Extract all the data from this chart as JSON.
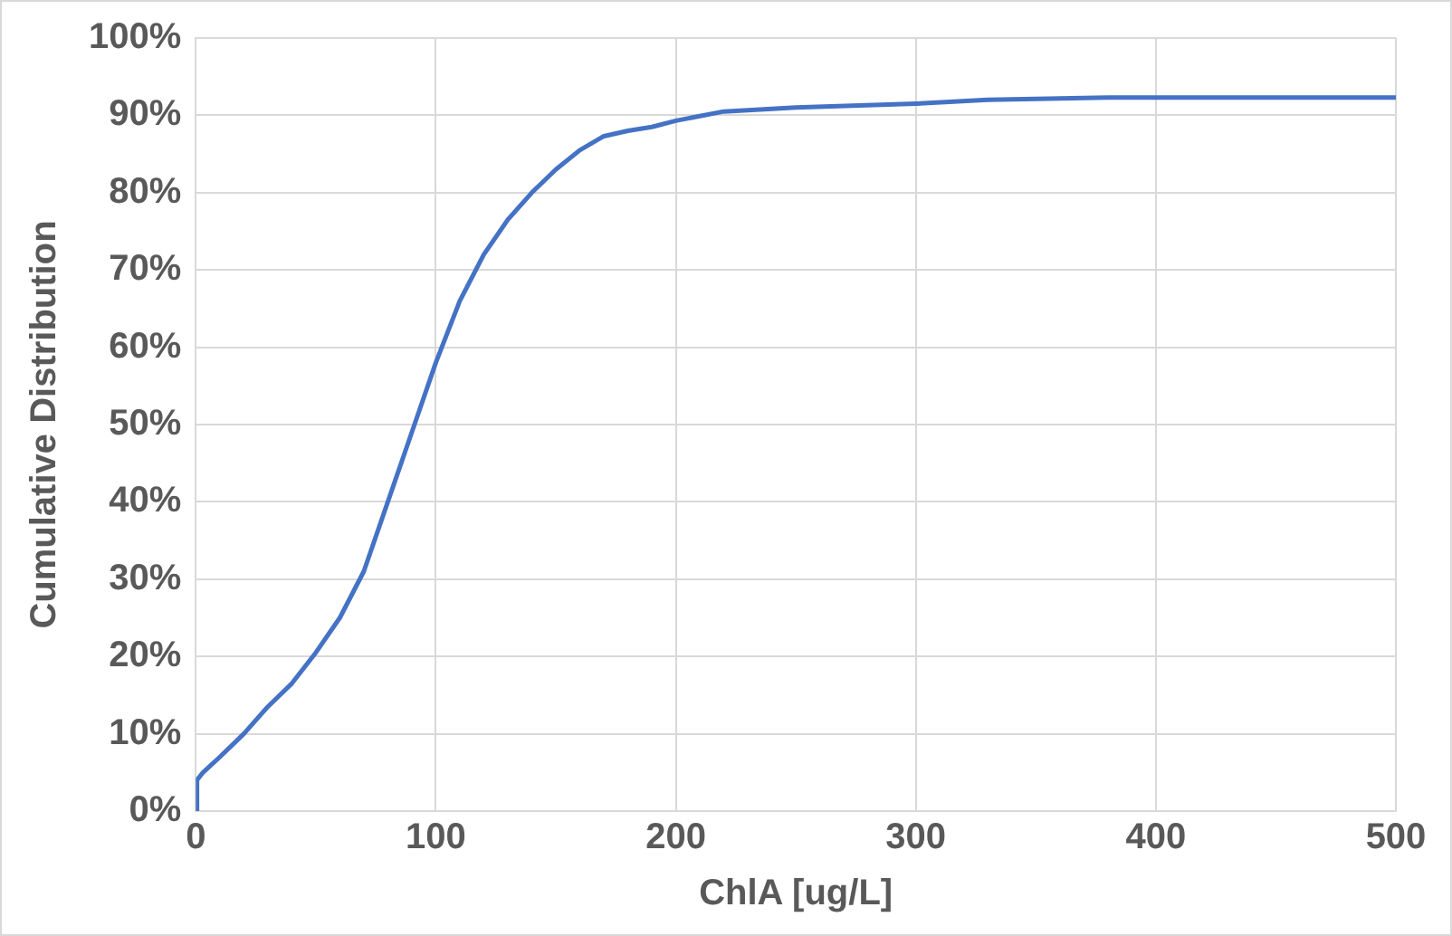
{
  "chart_data": {
    "type": "line",
    "xlabel": "ChlA [ug/L]",
    "ylabel": "Cumulative Distribution",
    "x": [
      0,
      0.5,
      3,
      10,
      20,
      30,
      40,
      50,
      60,
      70,
      80,
      90,
      100,
      110,
      120,
      130,
      140,
      150,
      160,
      170,
      180,
      190,
      200,
      220,
      250,
      300,
      330,
      380,
      500
    ],
    "series": [
      {
        "color": "#4472c4",
        "values": [
          0,
          4,
          5,
          7,
          10,
          13.5,
          16.5,
          20.5,
          25,
          31,
          40,
          49,
          58,
          66,
          72,
          76.5,
          80,
          83,
          85.5,
          87.3,
          88,
          88.5,
          89.3,
          90.5,
          91,
          91.5,
          92,
          92.3,
          92.3
        ]
      }
    ],
    "xlim": [
      0,
      500
    ],
    "xticks": [
      0,
      100,
      200,
      300,
      400,
      500
    ],
    "ylim": [
      0,
      100
    ],
    "yticks": [
      {
        "value": 0,
        "label": "0%"
      },
      {
        "value": 10,
        "label": "10%"
      },
      {
        "value": 20,
        "label": "20%"
      },
      {
        "value": 30,
        "label": "30%"
      },
      {
        "value": 40,
        "label": "40%"
      },
      {
        "value": 50,
        "label": "50%"
      },
      {
        "value": 60,
        "label": "60%"
      },
      {
        "value": 70,
        "label": "70%"
      },
      {
        "value": 80,
        "label": "80%"
      },
      {
        "value": 90,
        "label": "90%"
      },
      {
        "value": 100,
        "label": "100%"
      }
    ],
    "grid": true,
    "legend": false,
    "marker": "none",
    "line_style": "solid"
  }
}
